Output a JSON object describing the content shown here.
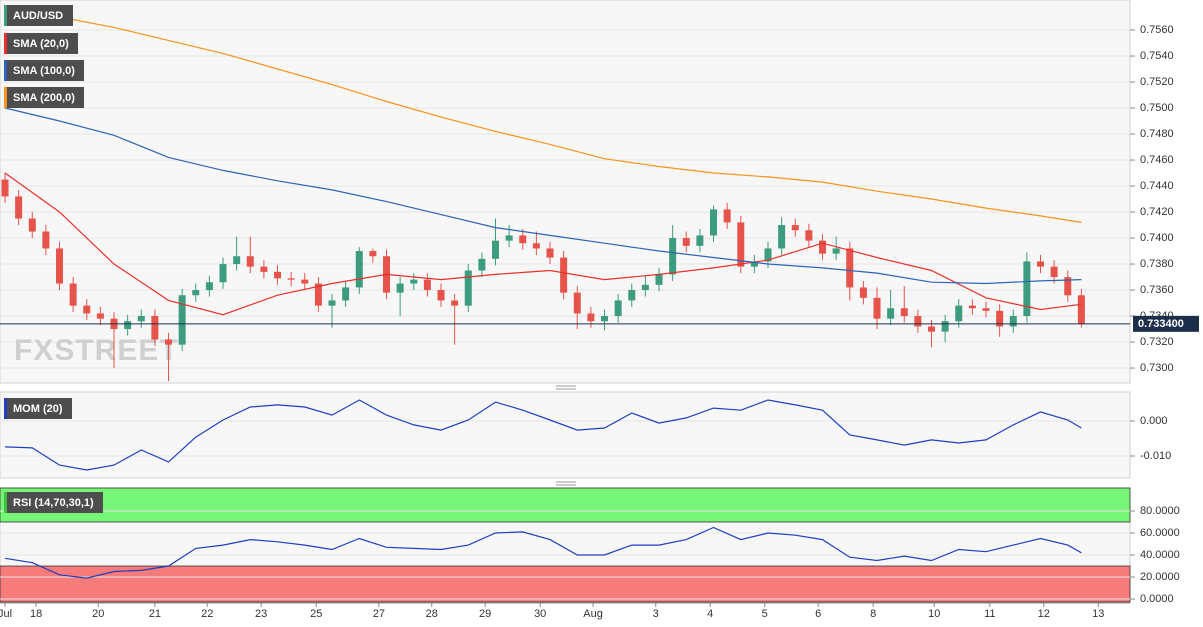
{
  "chart_data": [
    {
      "type": "candlestick",
      "name": "AUD/USD",
      "color": "#3d9b7f",
      "up_color": "#3d9b7f",
      "down_color": "#e5534b",
      "x": [
        0,
        0.25,
        0.5,
        0.75,
        1,
        1.25,
        1.5,
        1.75,
        2,
        2.25,
        2.5,
        2.75,
        3,
        3.25,
        3.5,
        3.75,
        4,
        4.25,
        4.5,
        4.75,
        5,
        5.25,
        5.5,
        5.75,
        6,
        6.25,
        6.5,
        6.75,
        7,
        7.25,
        7.5,
        7.75,
        8,
        8.25,
        8.5,
        8.75,
        9,
        9.25,
        9.5,
        9.75,
        10,
        10.25,
        10.5,
        10.75,
        11,
        11.25,
        11.5,
        11.75,
        12,
        12.25,
        12.5,
        12.75,
        13,
        13.25,
        13.5,
        13.75,
        14,
        14.25,
        14.5,
        14.75,
        15,
        15.25,
        15.5,
        15.75,
        16,
        16.25,
        16.5,
        16.75,
        17,
        17.25,
        17.5,
        17.75,
        18,
        18.25,
        18.5,
        18.75,
        19,
        19.25,
        19.5,
        19.75
      ],
      "open": [
        0.7445,
        0.7432,
        0.7415,
        0.7405,
        0.7392,
        0.7365,
        0.7348,
        0.7342,
        0.7338,
        0.733,
        0.7336,
        0.734,
        0.7322,
        0.7318,
        0.7356,
        0.736,
        0.7366,
        0.738,
        0.7386,
        0.7378,
        0.7374,
        0.7369,
        0.7368,
        0.7365,
        0.7348,
        0.7352,
        0.7362,
        0.739,
        0.7386,
        0.7358,
        0.7365,
        0.7368,
        0.736,
        0.7352,
        0.7348,
        0.7375,
        0.7384,
        0.7398,
        0.7402,
        0.7396,
        0.7392,
        0.7385,
        0.7358,
        0.7342,
        0.7336,
        0.734,
        0.7352,
        0.736,
        0.7364,
        0.7372,
        0.74,
        0.7394,
        0.7402,
        0.7422,
        0.7412,
        0.7378,
        0.7382,
        0.7392,
        0.741,
        0.7406,
        0.7398,
        0.7388,
        0.7392,
        0.7362,
        0.7354,
        0.7338,
        0.7346,
        0.734,
        0.7332,
        0.7328,
        0.7336,
        0.7348,
        0.7346,
        0.7344,
        0.7332,
        0.734,
        0.7382,
        0.7378,
        0.737,
        0.7356
      ],
      "high": [
        0.745,
        0.7437,
        0.742,
        0.741,
        0.7397,
        0.737,
        0.7353,
        0.7347,
        0.7343,
        0.7341,
        0.7345,
        0.7345,
        0.7327,
        0.7361,
        0.7365,
        0.7371,
        0.7385,
        0.7401,
        0.7401,
        0.7383,
        0.7379,
        0.7374,
        0.7373,
        0.737,
        0.7357,
        0.7367,
        0.7393,
        0.7392,
        0.7391,
        0.737,
        0.7373,
        0.7373,
        0.7365,
        0.7357,
        0.738,
        0.7389,
        0.7415,
        0.741,
        0.7407,
        0.7405,
        0.7397,
        0.739,
        0.7363,
        0.7347,
        0.7345,
        0.7357,
        0.7365,
        0.7371,
        0.7377,
        0.741,
        0.7405,
        0.7407,
        0.7425,
        0.7427,
        0.7417,
        0.7387,
        0.7397,
        0.7416,
        0.7415,
        0.7411,
        0.7403,
        0.7401,
        0.7397,
        0.7367,
        0.7362,
        0.736,
        0.7363,
        0.7345,
        0.7337,
        0.7341,
        0.7353,
        0.7353,
        0.7351,
        0.7349,
        0.7345,
        0.7389,
        0.7387,
        0.7383,
        0.7375,
        0.7361
      ],
      "low": [
        0.7427,
        0.741,
        0.74,
        0.7387,
        0.736,
        0.7343,
        0.7337,
        0.7333,
        0.73,
        0.7325,
        0.7331,
        0.7317,
        0.729,
        0.7313,
        0.7351,
        0.7355,
        0.7361,
        0.7375,
        0.7373,
        0.7369,
        0.7364,
        0.7363,
        0.736,
        0.7343,
        0.7331,
        0.7347,
        0.7357,
        0.7381,
        0.7353,
        0.734,
        0.736,
        0.7355,
        0.7347,
        0.7318,
        0.7343,
        0.737,
        0.7379,
        0.7393,
        0.7391,
        0.7387,
        0.738,
        0.7353,
        0.733,
        0.7331,
        0.7329,
        0.7335,
        0.7347,
        0.7355,
        0.7359,
        0.7367,
        0.7389,
        0.7389,
        0.7397,
        0.7407,
        0.7373,
        0.7373,
        0.7377,
        0.7387,
        0.7401,
        0.7393,
        0.7383,
        0.7383,
        0.7352,
        0.7349,
        0.733,
        0.7333,
        0.7335,
        0.7327,
        0.7316,
        0.732,
        0.7331,
        0.7341,
        0.7339,
        0.7324,
        0.7327,
        0.7335,
        0.7373,
        0.7365,
        0.7351,
        0.7331
      ],
      "close": [
        0.7432,
        0.7415,
        0.7405,
        0.7392,
        0.7365,
        0.7348,
        0.7342,
        0.7338,
        0.733,
        0.7336,
        0.734,
        0.7322,
        0.7318,
        0.7356,
        0.736,
        0.7366,
        0.738,
        0.7386,
        0.7378,
        0.7374,
        0.7369,
        0.7368,
        0.7365,
        0.7348,
        0.7352,
        0.7362,
        0.739,
        0.7386,
        0.7358,
        0.7365,
        0.7368,
        0.736,
        0.7352,
        0.7348,
        0.7375,
        0.7384,
        0.7398,
        0.7402,
        0.7396,
        0.7392,
        0.7385,
        0.7358,
        0.7342,
        0.7336,
        0.734,
        0.7352,
        0.736,
        0.7364,
        0.7372,
        0.74,
        0.7394,
        0.7402,
        0.7422,
        0.7412,
        0.7378,
        0.7382,
        0.7392,
        0.741,
        0.7406,
        0.7398,
        0.7388,
        0.7392,
        0.7362,
        0.7354,
        0.7338,
        0.7346,
        0.734,
        0.7332,
        0.7328,
        0.7336,
        0.7348,
        0.7346,
        0.7344,
        0.7332,
        0.734,
        0.7382,
        0.7378,
        0.737,
        0.7356,
        0.7334
      ],
      "series": [
        {
          "name": "SMA (20,0)",
          "color": "#e8312c",
          "x": [
            0,
            1,
            2,
            3,
            4,
            5,
            6,
            7,
            8,
            9,
            10,
            11,
            12,
            13,
            14,
            15,
            16,
            17,
            18,
            19,
            19.75
          ],
          "values": [
            0.745,
            0.742,
            0.738,
            0.7352,
            0.7341,
            0.7356,
            0.7365,
            0.7372,
            0.7368,
            0.7372,
            0.7375,
            0.7368,
            0.7372,
            0.7377,
            0.7383,
            0.7396,
            0.7385,
            0.7375,
            0.7354,
            0.7345,
            0.7349
          ]
        },
        {
          "name": "SMA (100,0)",
          "color": "#2f63b8",
          "x": [
            0,
            1,
            2,
            3,
            4,
            5,
            6,
            7,
            8,
            9,
            10,
            11,
            12,
            13,
            14,
            15,
            16,
            17,
            18,
            19,
            19.75
          ],
          "values": [
            0.75,
            0.749,
            0.7479,
            0.7462,
            0.7452,
            0.7444,
            0.7437,
            0.7428,
            0.7418,
            0.7408,
            0.7402,
            0.7396,
            0.739,
            0.7385,
            0.738,
            0.7377,
            0.7373,
            0.7366,
            0.7365,
            0.7367,
            0.7368
          ]
        },
        {
          "name": "SMA (200,0)",
          "color": "#f7931e",
          "x": [
            0,
            1,
            2,
            3,
            4,
            5,
            6,
            7,
            8,
            9,
            10,
            11,
            12,
            13,
            14,
            15,
            16,
            17,
            18,
            19,
            19.75
          ],
          "values": [
            0.7576,
            0.757,
            0.7562,
            0.7552,
            0.7542,
            0.753,
            0.7518,
            0.7505,
            0.7493,
            0.7482,
            0.7472,
            0.7461,
            0.7455,
            0.745,
            0.7447,
            0.7443,
            0.7436,
            0.743,
            0.7423,
            0.7417,
            0.7412
          ]
        }
      ],
      "current_price": {
        "value": 0.7334,
        "label": "0.733400"
      },
      "watermark": "FXSTREET",
      "xlim": [
        -0.092,
        20.642
      ],
      "ylim": [
        0.72885,
        0.75831
      ],
      "yticks": [
        {
          "value": 0.73,
          "label": "0.7300"
        },
        {
          "value": 0.732,
          "label": "0.7320"
        },
        {
          "value": 0.734,
          "label": "0.7340"
        },
        {
          "value": 0.736,
          "label": "0.7360"
        },
        {
          "value": 0.738,
          "label": "0.7380"
        },
        {
          "value": 0.74,
          "label": "0.7400"
        },
        {
          "value": 0.742,
          "label": "0.7420"
        },
        {
          "value": 0.744,
          "label": "0.7440"
        },
        {
          "value": 0.746,
          "label": "0.7460"
        },
        {
          "value": 0.748,
          "label": "0.7480"
        },
        {
          "value": 0.75,
          "label": "0.7500"
        },
        {
          "value": 0.752,
          "label": "0.7520"
        },
        {
          "value": 0.754,
          "label": "0.7540"
        },
        {
          "value": 0.756,
          "label": "0.7560"
        }
      ],
      "grid": true
    },
    {
      "type": "line",
      "series": [
        {
          "name": "MOM (20)",
          "color": "#1f3fbf",
          "x": [
            0,
            0.5,
            1,
            1.5,
            2,
            2.5,
            3,
            3.5,
            4,
            4.5,
            5,
            5.5,
            6,
            6.5,
            7,
            7.5,
            8,
            8.5,
            9,
            9.5,
            10,
            10.5,
            11,
            11.5,
            12,
            12.5,
            13,
            13.5,
            14,
            14.5,
            15,
            15.5,
            16,
            16.5,
            17,
            17.5,
            18,
            18.5,
            19,
            19.5,
            19.75
          ],
          "values": [
            -0.0074,
            -0.0077,
            -0.0126,
            -0.014,
            -0.0126,
            -0.0083,
            -0.0117,
            -0.0046,
            0.0003,
            0.004,
            0.0046,
            0.004,
            0.0017,
            0.006,
            0.0017,
            -0.0011,
            -0.0026,
            0.0003,
            0.0054,
            0.0031,
            0.0003,
            -0.0026,
            -0.002,
            0.0023,
            -0.0006,
            0.0009,
            0.0037,
            0.0031,
            0.006,
            0.0046,
            0.0031,
            -0.004,
            -0.0054,
            -0.0069,
            -0.0054,
            -0.0063,
            -0.0054,
            -0.0011,
            0.0026,
            0.0003,
            -0.002
          ]
        }
      ],
      "xlim": [
        -0.092,
        20.642
      ],
      "ylim": [
        -0.01629,
        0.00829
      ],
      "yticks": [
        {
          "value": 0,
          "label": "0.000"
        },
        {
          "value": -0.01,
          "label": "-0.010"
        }
      ],
      "grid": true
    },
    {
      "type": "line",
      "series": [
        {
          "name": "RSI (14,70,30,1)",
          "color": "#1f3fbf",
          "legend_color": "#3fbf3f",
          "x": [
            0,
            0.5,
            1,
            1.5,
            2,
            2.5,
            3,
            3.5,
            4,
            4.5,
            5,
            5.5,
            6,
            6.5,
            7,
            7.5,
            8,
            8.5,
            9,
            9.5,
            10,
            10.5,
            11,
            11.5,
            12,
            12.5,
            13,
            13.5,
            14,
            14.5,
            15,
            15.5,
            16,
            16.5,
            17,
            17.5,
            18,
            18.5,
            19,
            19.5,
            19.75
          ],
          "values": [
            37,
            33,
            22,
            19,
            25,
            26,
            30,
            46,
            49,
            54,
            52,
            49,
            45,
            55,
            47,
            46,
            45,
            49,
            60,
            61,
            54,
            40,
            40,
            49,
            49,
            54,
            65,
            54,
            60,
            58,
            54,
            38,
            35,
            39,
            35,
            45,
            43,
            49,
            55,
            49,
            42
          ]
        }
      ],
      "overbought": 70,
      "oversold": 30,
      "overbought_color": "#77f577",
      "oversold_color": "#f77b7b",
      "xlim": [
        -0.092,
        20.642
      ],
      "ylim": [
        -2.7,
        100.9
      ],
      "yticks": [
        {
          "value": 0,
          "label": "0.0000"
        },
        {
          "value": 20,
          "label": "20.0000"
        },
        {
          "value": 40,
          "label": "40.0000"
        },
        {
          "value": 60,
          "label": "60.0000"
        },
        {
          "value": 80,
          "label": "80.0000"
        }
      ],
      "xticks": [
        {
          "value": 0,
          "label": "Jul"
        },
        {
          "value": 0.57,
          "label": "18"
        },
        {
          "value": 1.71,
          "label": "20"
        },
        {
          "value": 2.75,
          "label": "21"
        },
        {
          "value": 3.71,
          "label": "22"
        },
        {
          "value": 4.7,
          "label": "23"
        },
        {
          "value": 5.71,
          "label": "25"
        },
        {
          "value": 6.86,
          "label": "27"
        },
        {
          "value": 7.83,
          "label": "28"
        },
        {
          "value": 8.81,
          "label": "29"
        },
        {
          "value": 9.82,
          "label": "30"
        },
        {
          "value": 10.79,
          "label": "Aug"
        },
        {
          "value": 11.94,
          "label": "3"
        },
        {
          "value": 12.94,
          "label": "4"
        },
        {
          "value": 13.94,
          "label": "5"
        },
        {
          "value": 14.92,
          "label": "6"
        },
        {
          "value": 15.93,
          "label": "8"
        },
        {
          "value": 17.05,
          "label": "10"
        },
        {
          "value": 18.07,
          "label": "11"
        },
        {
          "value": 19.06,
          "label": "12"
        },
        {
          "value": 20.06,
          "label": "13"
        }
      ],
      "grid": true
    }
  ]
}
